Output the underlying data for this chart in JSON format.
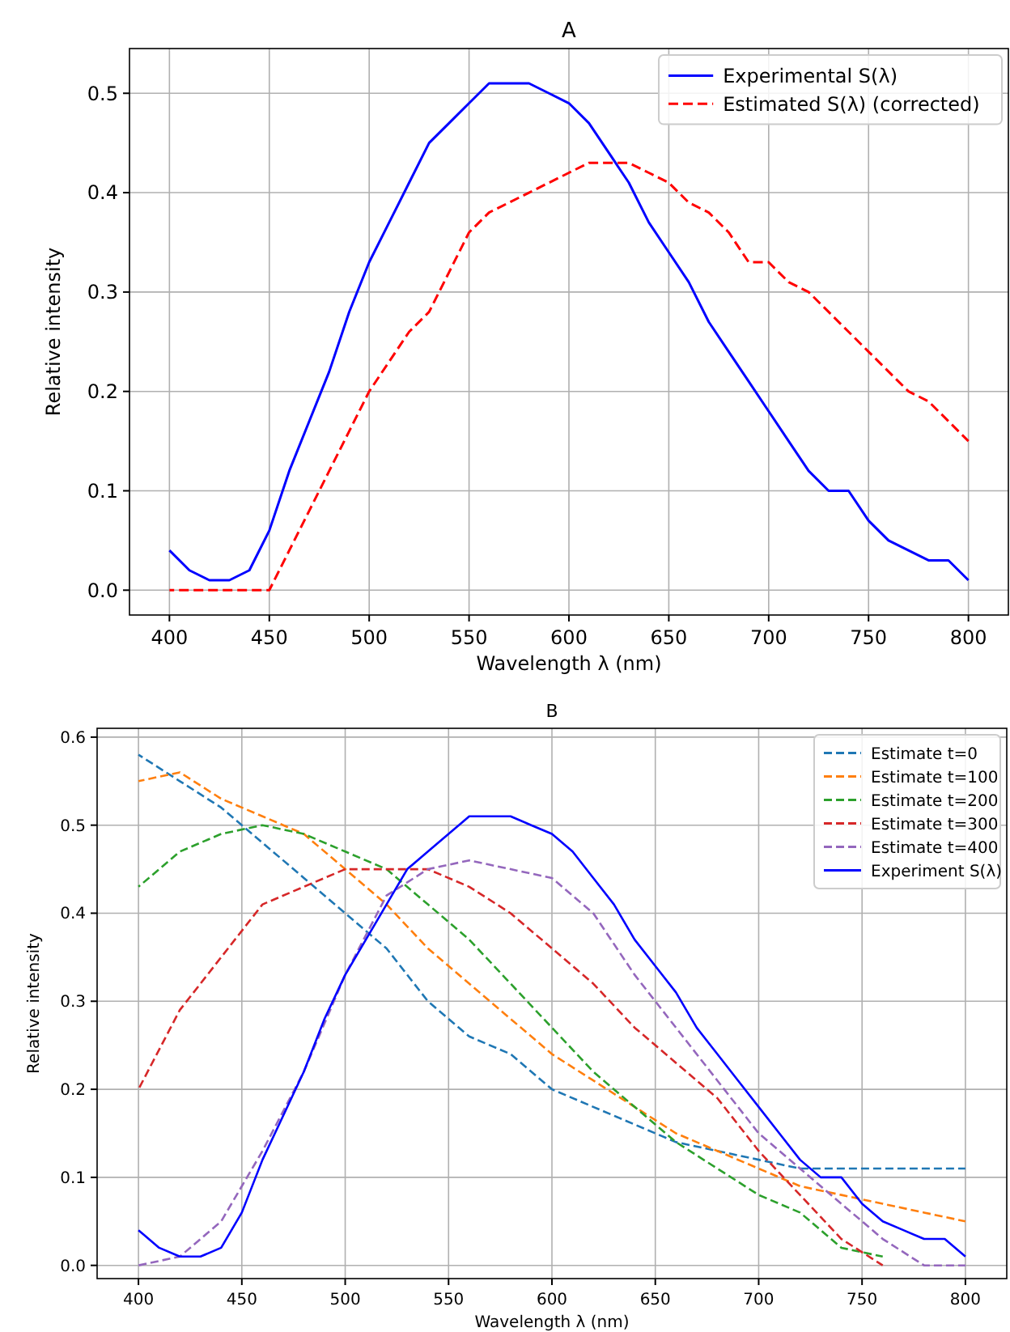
{
  "chart_data": [
    {
      "type": "line",
      "title": "A",
      "xlabel": "Wavelength λ (nm)",
      "ylabel": "Relative intensity",
      "xlim": [
        380,
        820
      ],
      "xticks": [
        400,
        450,
        500,
        550,
        600,
        650,
        700,
        750,
        800
      ],
      "ylim": [
        -0.025,
        0.545
      ],
      "yticks": [
        {
          "value": 0,
          "label": "0.0"
        },
        0.1,
        0.2,
        0.3,
        0.4,
        0.5
      ],
      "grid": true,
      "legend": "top right",
      "x": [
        400,
        410,
        420,
        430,
        440,
        450,
        460,
        470,
        480,
        490,
        500,
        510,
        520,
        530,
        540,
        550,
        560,
        570,
        580,
        590,
        600,
        610,
        620,
        630,
        640,
        650,
        660,
        670,
        680,
        690,
        700,
        710,
        720,
        730,
        740,
        750,
        760,
        770,
        780,
        790,
        800
      ],
      "series": [
        {
          "name": "Experimental S(λ)",
          "color": "#0000ff",
          "line_style": "solid",
          "values": [
            0.04,
            0.02,
            0.01,
            0.01,
            0.02,
            0.06,
            0.12,
            0.17,
            0.22,
            0.28,
            0.33,
            0.37,
            0.41,
            0.45,
            0.47,
            0.49,
            0.51,
            0.51,
            0.51,
            0.5,
            0.49,
            0.47,
            0.44,
            0.41,
            0.37,
            0.34,
            0.31,
            0.27,
            0.24,
            0.21,
            0.18,
            0.15,
            0.12,
            0.1,
            0.1,
            0.07,
            0.05,
            0.04,
            0.03,
            0.03,
            0.01
          ]
        },
        {
          "name": "Estimated S(λ) (corrected)",
          "color": "#ff0000",
          "line_style": "dashed",
          "values": [
            0,
            0,
            0,
            0,
            0,
            0,
            0.04,
            0.08,
            0.12,
            0.16,
            0.2,
            0.23,
            0.26,
            0.28,
            0.32,
            0.36,
            0.38,
            0.39,
            0.4,
            0.41,
            0.42,
            0.43,
            0.43,
            0.43,
            0.42,
            0.41,
            0.39,
            0.38,
            0.36,
            0.33,
            0.33,
            0.31,
            0.3,
            0.28,
            0.26,
            0.24,
            0.22,
            0.2,
            0.19,
            0.17,
            0.15
          ]
        }
      ]
    },
    {
      "type": "line",
      "title": "B",
      "xlabel": "Wavelength λ (nm)",
      "ylabel": "Relative intensity",
      "xlim": [
        380,
        820
      ],
      "xticks": [
        400,
        450,
        500,
        550,
        600,
        650,
        700,
        750,
        800
      ],
      "ylim": [
        -0.015,
        0.61
      ],
      "yticks": [
        {
          "value": 0,
          "label": "0.0"
        },
        0.1,
        0.2,
        0.3,
        0.4,
        0.5,
        0.6
      ],
      "grid": true,
      "legend": "top right",
      "series": [
        {
          "name": "Estimate t=0",
          "color": "#1f77b4",
          "line_style": "dashed",
          "x": [
            400,
            420,
            440,
            460,
            480,
            500,
            520,
            540,
            560,
            580,
            600,
            620,
            640,
            660,
            680,
            700,
            720,
            740,
            760,
            780,
            800
          ],
          "values": [
            0.58,
            0.55,
            0.52,
            0.48,
            0.44,
            0.4,
            0.36,
            0.3,
            0.26,
            0.24,
            0.2,
            0.18,
            0.16,
            0.14,
            0.13,
            0.12,
            0.11,
            0.11,
            0.11,
            0.11,
            0.11
          ]
        },
        {
          "name": "Estimate t=100",
          "color": "#ff7f0e",
          "line_style": "dashed",
          "x": [
            400,
            420,
            440,
            460,
            480,
            500,
            520,
            540,
            560,
            580,
            600,
            620,
            640,
            660,
            680,
            700,
            720,
            740,
            760,
            780,
            800
          ],
          "values": [
            0.55,
            0.56,
            0.53,
            0.51,
            0.49,
            0.45,
            0.41,
            0.36,
            0.32,
            0.28,
            0.24,
            0.21,
            0.18,
            0.15,
            0.13,
            0.11,
            0.09,
            0.08,
            0.07,
            0.06,
            0.05
          ]
        },
        {
          "name": "Estimate t=200",
          "color": "#2ca02c",
          "line_style": "dashed",
          "x": [
            400,
            420,
            440,
            460,
            480,
            500,
            520,
            540,
            560,
            580,
            600,
            620,
            640,
            660,
            680,
            700,
            720,
            740,
            760
          ],
          "values": [
            0.43,
            0.47,
            0.49,
            0.5,
            0.49,
            0.47,
            0.45,
            0.41,
            0.37,
            0.32,
            0.27,
            0.22,
            0.18,
            0.14,
            0.11,
            0.08,
            0.06,
            0.02,
            0.01
          ]
        },
        {
          "name": "Estimate t=300",
          "color": "#d62728",
          "line_style": "dashed",
          "x": [
            400,
            420,
            440,
            460,
            480,
            500,
            520,
            540,
            560,
            580,
            600,
            620,
            640,
            660,
            680,
            700,
            720,
            740,
            760
          ],
          "values": [
            0.2,
            0.29,
            0.35,
            0.41,
            0.43,
            0.45,
            0.45,
            0.45,
            0.43,
            0.4,
            0.36,
            0.32,
            0.27,
            0.23,
            0.19,
            0.13,
            0.08,
            0.03,
            0
          ]
        },
        {
          "name": "Estimate t=400",
          "color": "#9467bd",
          "line_style": "dashed",
          "x": [
            400,
            420,
            440,
            460,
            480,
            500,
            520,
            540,
            560,
            580,
            600,
            620,
            640,
            660,
            680,
            700,
            720,
            740,
            760,
            780,
            800
          ],
          "values": [
            0,
            0.01,
            0.05,
            0.13,
            0.22,
            0.33,
            0.42,
            0.45,
            0.46,
            0.45,
            0.44,
            0.4,
            0.33,
            0.27,
            0.21,
            0.15,
            0.11,
            0.07,
            0.03,
            0,
            0
          ]
        },
        {
          "name": "Experiment S(λ)",
          "color": "#0000ff",
          "line_style": "solid",
          "x": [
            400,
            410,
            420,
            430,
            440,
            450,
            460,
            470,
            480,
            490,
            500,
            510,
            520,
            530,
            540,
            550,
            560,
            570,
            580,
            590,
            600,
            610,
            620,
            630,
            640,
            650,
            660,
            670,
            680,
            690,
            700,
            710,
            720,
            730,
            740,
            750,
            760,
            770,
            780,
            790,
            800
          ],
          "values": [
            0.04,
            0.02,
            0.01,
            0.01,
            0.02,
            0.06,
            0.12,
            0.17,
            0.22,
            0.28,
            0.33,
            0.37,
            0.41,
            0.45,
            0.47,
            0.49,
            0.51,
            0.51,
            0.51,
            0.5,
            0.49,
            0.47,
            0.44,
            0.41,
            0.37,
            0.34,
            0.31,
            0.27,
            0.24,
            0.21,
            0.18,
            0.15,
            0.12,
            0.1,
            0.1,
            0.07,
            0.05,
            0.04,
            0.03,
            0.03,
            0.01
          ]
        }
      ]
    }
  ]
}
